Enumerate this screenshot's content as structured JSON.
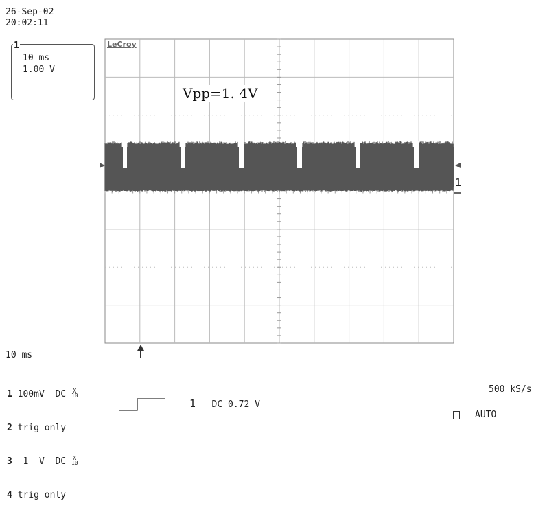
{
  "header": {
    "date": "26-Sep-02",
    "time": "20:02:11"
  },
  "channel_box": {
    "channel": "1",
    "timebase": "10 ms",
    "volts": "1.00 V"
  },
  "brand": "LeCroy",
  "annotation": "Vpp=1. 4V",
  "trace_marker": "1",
  "timebase_label": "10 ms",
  "channels": [
    {
      "num": "1",
      "text": "100mV  DC"
    },
    {
      "num": "2",
      "text": "trig only"
    },
    {
      "num": "3",
      "text": " 1  V  DC"
    },
    {
      "num": "4",
      "text": "trig only"
    }
  ],
  "probe_label": {
    "top": "X",
    "bottom": "10"
  },
  "trigger": {
    "source": "1",
    "coupling_level": "DC 0.72 V"
  },
  "sample_rate": "500 kS/s",
  "trigger_mode": "AUTO",
  "colors": {
    "trace": "#555555",
    "grid": "#bbbbbb",
    "border": "#888888"
  }
}
